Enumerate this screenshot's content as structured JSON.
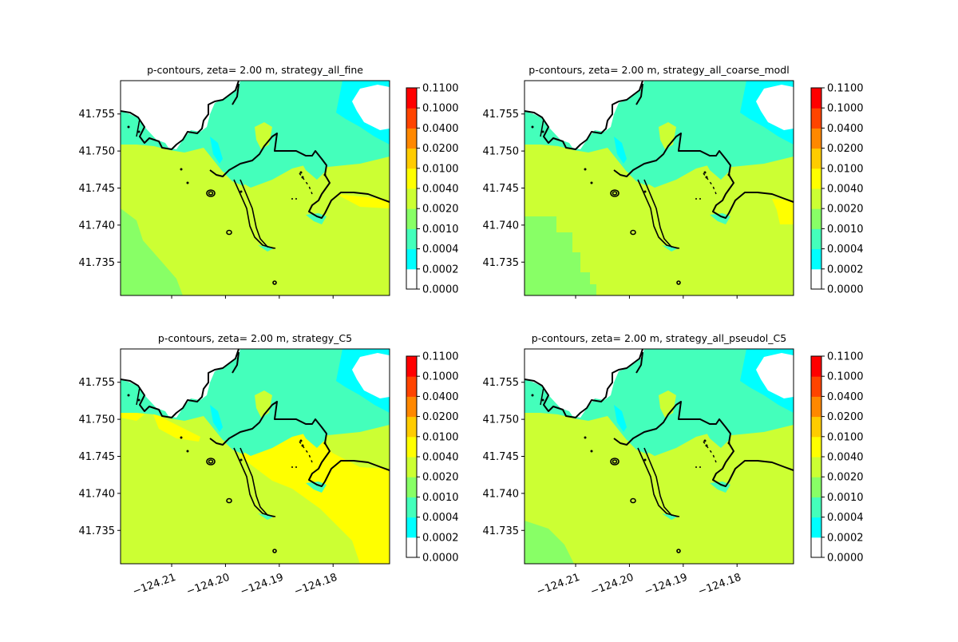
{
  "figure": {
    "colors": {
      "land_fill": "#ffffff",
      "coastline": "#000000",
      "frame": "#000000"
    }
  },
  "colorbar": {
    "levels": [
      "0.0000",
      "0.0002",
      "0.0004",
      "0.0010",
      "0.0020",
      "0.0040",
      "0.0100",
      "0.0200",
      "0.0400",
      "0.1000",
      "0.1100"
    ],
    "colors": [
      "#ffffff",
      "#00ffff",
      "#44ffbb",
      "#88ff66",
      "#ccff33",
      "#ffff00",
      "#ffcc00",
      "#ff8800",
      "#ff4400",
      "#ff0000"
    ]
  },
  "chart_data": [
    {
      "type": "heatmap",
      "title": "p-contours, zeta= 2.00 m, strategy_all_fine",
      "xlabel": "",
      "ylabel": "",
      "xlim": [
        -124.2195,
        -124.1695
      ],
      "ylim": [
        41.7305,
        41.7595
      ],
      "xticks": [],
      "yticks": [
        "41.735",
        "41.740",
        "41.745",
        "41.750",
        "41.755"
      ],
      "field": [
        {
          "level": 2,
          "description": "offshore band"
        },
        {
          "level": 3,
          "description": "southwest corner"
        },
        {
          "level": 4,
          "description": "bulk of bay"
        },
        {
          "level": 5,
          "description": "small patches"
        }
      ]
    },
    {
      "type": "heatmap",
      "title": "p-contours, zeta= 2.00 m, strategy_all_coarse_modl",
      "xlabel": "",
      "ylabel": "",
      "xlim": [
        -124.2195,
        -124.1695
      ],
      "ylim": [
        41.7305,
        41.7595
      ],
      "xticks": [],
      "yticks": [
        "41.735",
        "41.740",
        "41.745",
        "41.750",
        "41.755"
      ]
    },
    {
      "type": "heatmap",
      "title": "p-contours, zeta= 2.00 m, strategy_C5",
      "xlabel": "",
      "ylabel": "",
      "xlim": [
        -124.2195,
        -124.1695
      ],
      "ylim": [
        41.7305,
        41.7595
      ],
      "xticks": [
        "−124.21",
        "−124.20",
        "−124.19",
        "−124.18"
      ],
      "yticks": [
        "41.735",
        "41.740",
        "41.745",
        "41.750",
        "41.755"
      ]
    },
    {
      "type": "heatmap",
      "title": "p-contours, zeta= 2.00 m, strategy_all_pseudol_C5",
      "xlabel": "",
      "ylabel": "",
      "xlim": [
        -124.2195,
        -124.1695
      ],
      "ylim": [
        41.7305,
        41.7595
      ],
      "xticks": [
        "−124.21",
        "−124.20",
        "−124.19",
        "−124.18"
      ],
      "yticks": [
        "41.735",
        "41.740",
        "41.745",
        "41.750",
        "41.755"
      ]
    }
  ]
}
